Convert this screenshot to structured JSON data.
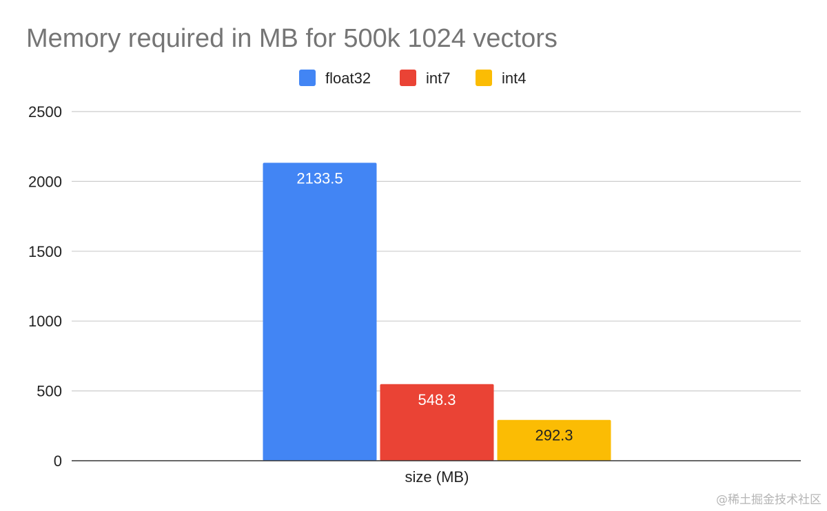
{
  "colors": {
    "float32": "#4285F4",
    "int7": "#EA4335",
    "int4": "#FBBC04",
    "title": "#757575",
    "grid": "#CCCCCC",
    "axis": "#333333",
    "text": "#222222"
  },
  "watermark": "@稀土掘金技术社区",
  "chart_data": {
    "type": "bar",
    "title": "Memory required in MB for 500k 1024 vectors",
    "xlabel": "",
    "ylabel": "",
    "categories": [
      "size (MB)"
    ],
    "series": [
      {
        "name": "float32",
        "values": [
          2133.5
        ],
        "label": "2133.5",
        "color": "#4285F4",
        "label_color": "#FFFFFF"
      },
      {
        "name": "int7",
        "values": [
          548.3
        ],
        "label": "548.3",
        "color": "#EA4335",
        "label_color": "#FFFFFF"
      },
      {
        "name": "int4",
        "values": [
          292.3
        ],
        "label": "292.3",
        "color": "#FBBC04",
        "label_color": "#222222"
      }
    ],
    "ylim": [
      0,
      2500
    ],
    "yticks": [
      "0",
      "500",
      "1000",
      "1500",
      "2000",
      "2500"
    ],
    "grid": true,
    "legend_position": "top-center"
  }
}
